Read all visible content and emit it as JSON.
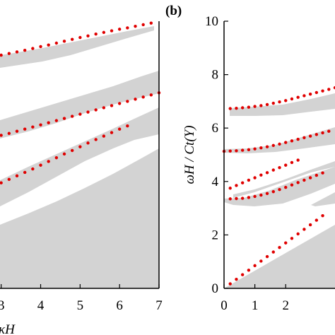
{
  "chart_data": [
    {
      "panel": "left",
      "type": "scatter",
      "xlabel": "κH",
      "ylabel": "",
      "xlim": [
        2.97,
        7
      ],
      "ylim": [
        0,
        10
      ],
      "x_ticks": [
        "3",
        "4",
        "5",
        "6",
        "7"
      ],
      "y_ticks": [],
      "series": [
        {
          "x": [
            3.0,
            3.2,
            3.4,
            3.6,
            3.8,
            4.0,
            4.2,
            4.4,
            4.6,
            4.8,
            5.0,
            5.2,
            5.4,
            5.6,
            5.8,
            6.0,
            6.2,
            6.4,
            6.6,
            6.8
          ],
          "y": [
            8.73,
            8.79,
            8.85,
            8.91,
            8.98,
            9.05,
            9.11,
            9.18,
            9.25,
            9.32,
            9.39,
            9.45,
            9.52,
            9.58,
            9.64,
            9.7,
            9.75,
            9.81,
            9.87,
            9.93
          ]
        },
        {
          "x": [
            3.0,
            3.2,
            3.4,
            3.6,
            3.8,
            4.0,
            4.2,
            4.4,
            4.6,
            4.8,
            5.0,
            5.2,
            5.4,
            5.6,
            5.8,
            6.0,
            6.2,
            6.4,
            6.6,
            6.8,
            7.0
          ],
          "y": [
            5.73,
            5.8,
            5.88,
            5.96,
            6.04,
            6.12,
            6.2,
            6.28,
            6.36,
            6.44,
            6.52,
            6.6,
            6.68,
            6.76,
            6.84,
            6.92,
            7.0,
            7.08,
            7.16,
            7.24,
            7.32
          ]
        },
        {
          "x": [
            3.0,
            3.2,
            3.4,
            3.6,
            3.8,
            4.0,
            4.2,
            4.4,
            4.6,
            4.8,
            5.0,
            5.2,
            5.4,
            5.6,
            5.8,
            6.0,
            6.2
          ],
          "y": [
            3.95,
            4.08,
            4.21,
            4.34,
            4.47,
            4.61,
            4.75,
            4.89,
            5.03,
            5.16,
            5.3,
            5.44,
            5.57,
            5.7,
            5.83,
            5.96,
            6.08
          ]
        }
      ]
    },
    {
      "panel": "right",
      "panel_label": "(b)",
      "type": "scatter",
      "xlabel": "",
      "ylabel": "ωH / Ct(Y)",
      "xlim": [
        0,
        3.6
      ],
      "ylim": [
        0,
        10
      ],
      "x_ticks": [
        "0",
        "1",
        "2"
      ],
      "y_ticks": [
        "0",
        "2",
        "4",
        "6",
        "8",
        "10"
      ],
      "series": [
        {
          "x": [
            0.2,
            0.4,
            0.6,
            0.8,
            1.0,
            1.2,
            1.4,
            1.6,
            1.8,
            2.0,
            2.2,
            2.4,
            2.6,
            2.8,
            3.0,
            3.2,
            3.4,
            3.6
          ],
          "y": [
            6.73,
            6.74,
            6.76,
            6.78,
            6.81,
            6.84,
            6.88,
            6.93,
            6.98,
            7.03,
            7.09,
            7.15,
            7.21,
            7.27,
            7.33,
            7.39,
            7.45,
            7.51
          ]
        },
        {
          "x": [
            0.0,
            0.2,
            0.4,
            0.6,
            0.8,
            1.0,
            1.2,
            1.4,
            1.6,
            1.8,
            2.0,
            2.2,
            2.4,
            2.6,
            2.8,
            3.0,
            3.2,
            3.4
          ],
          "y": [
            5.13,
            5.14,
            5.15,
            5.17,
            5.19,
            5.22,
            5.26,
            5.3,
            5.35,
            5.4,
            5.46,
            5.52,
            5.58,
            5.64,
            5.7,
            5.76,
            5.82,
            5.88
          ]
        },
        {
          "x": [
            0.2,
            0.4,
            0.6,
            0.8,
            1.0,
            1.2,
            1.4,
            1.6,
            1.8,
            2.0,
            2.2,
            2.4,
            2.6,
            2.8,
            3.0,
            3.2
          ],
          "y": [
            3.35,
            3.36,
            3.37,
            3.4,
            3.44,
            3.49,
            3.55,
            3.62,
            3.7,
            3.78,
            3.87,
            3.96,
            4.05,
            4.14,
            4.23,
            4.32
          ]
        },
        {
          "x": [
            0.2,
            0.4,
            0.6,
            0.8,
            1.0,
            1.2,
            1.4,
            1.6,
            1.8,
            2.0,
            2.2,
            2.4
          ],
          "y": [
            3.75,
            3.85,
            3.95,
            4.05,
            4.14,
            4.24,
            4.33,
            4.43,
            4.52,
            4.61,
            4.71,
            4.8
          ]
        },
        {
          "x": [
            0.2,
            0.4,
            0.6,
            0.8,
            1.0,
            1.2,
            1.4,
            1.6,
            1.8,
            2.0,
            2.2,
            2.4,
            2.6,
            2.8,
            3.0,
            3.2
          ],
          "y": [
            0.17,
            0.34,
            0.51,
            0.68,
            0.85,
            1.02,
            1.19,
            1.36,
            1.53,
            1.7,
            1.87,
            2.04,
            2.21,
            2.38,
            2.55,
            2.72
          ]
        }
      ]
    }
  ],
  "style": {
    "point_color": "#e00000",
    "band_color": "#d3d3d3",
    "axis_color": "#000000"
  }
}
